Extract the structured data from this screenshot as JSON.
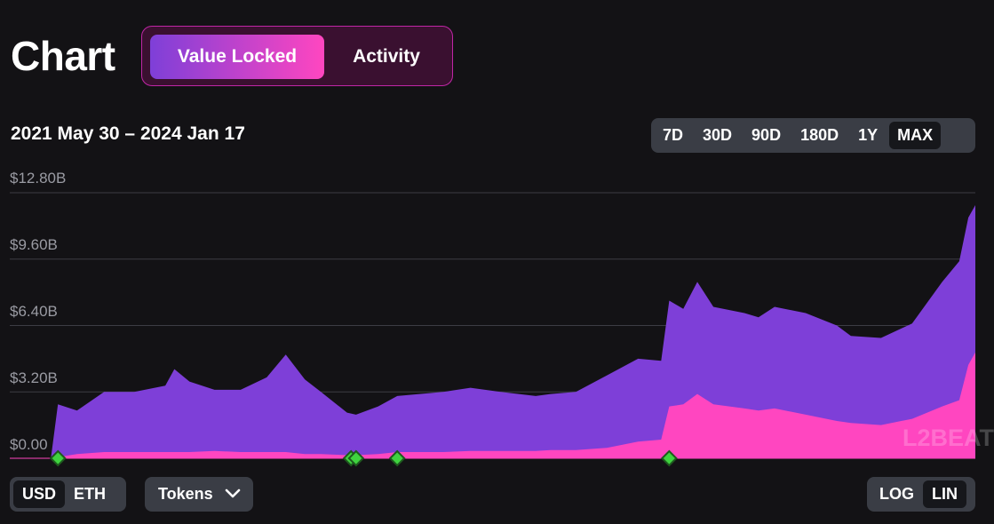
{
  "header": {
    "title": "Chart",
    "tabs": [
      {
        "label": "Value Locked",
        "active": true
      },
      {
        "label": "Activity",
        "active": false
      }
    ]
  },
  "date_range": "2021 May 30 – 2024 Jan 17",
  "periods": [
    {
      "label": "7D",
      "active": false
    },
    {
      "label": "30D",
      "active": false
    },
    {
      "label": "90D",
      "active": false
    },
    {
      "label": "180D",
      "active": false
    },
    {
      "label": "1Y",
      "active": false
    },
    {
      "label": "MAX",
      "active": true
    }
  ],
  "watermark": "L2BEAT",
  "controls": {
    "currency": [
      {
        "label": "USD",
        "active": true
      },
      {
        "label": "ETH",
        "active": false
      }
    ],
    "tokens_label": "Tokens",
    "scale": [
      {
        "label": "LOG",
        "active": false
      },
      {
        "label": "LIN",
        "active": true
      }
    ]
  },
  "colors": {
    "background": "#131215",
    "total_area": "#7e3fd8",
    "lower_area": "#ff46c0",
    "marker": "#3fd33f",
    "accent_gradient": [
      "#7e3fd8",
      "#ff46c0"
    ]
  },
  "chart_data": {
    "type": "area",
    "title": "",
    "xlabel": "",
    "ylabel": "",
    "y_tick_labels": [
      "$12.80B",
      "$9.60B",
      "$6.40B",
      "$3.20B",
      "$0.00"
    ],
    "ylim": [
      0,
      12.8
    ],
    "xlim": [
      "2021-05-30",
      "2024-01-17"
    ],
    "grid": true,
    "legend": "none",
    "x": [
      "2021-05-30",
      "2021-07-10",
      "2021-07-17",
      "2021-08-05",
      "2021-09-01",
      "2021-10-01",
      "2021-11-01",
      "2021-11-10",
      "2021-11-25",
      "2021-12-20",
      "2022-01-15",
      "2022-02-10",
      "2022-03-01",
      "2022-03-20",
      "2022-04-05",
      "2022-05-01",
      "2022-05-10",
      "2022-06-01",
      "2022-06-20",
      "2022-08-05",
      "2022-09-01",
      "2022-10-01",
      "2022-11-05",
      "2022-11-20",
      "2022-12-15",
      "2023-01-15",
      "2023-02-15",
      "2023-03-10",
      "2023-03-18",
      "2023-04-01",
      "2023-04-15",
      "2023-05-01",
      "2023-06-01",
      "2023-06-15",
      "2023-07-01",
      "2023-08-01",
      "2023-09-01",
      "2023-09-15",
      "2023-10-15",
      "2023-11-15",
      "2023-12-15",
      "2024-01-01",
      "2024-01-10",
      "2024-01-17"
    ],
    "series": [
      {
        "name": "",
        "values": [
          0,
          0,
          2.6,
          2.3,
          3.2,
          3.2,
          3.5,
          4.3,
          3.7,
          3.3,
          3.3,
          3.9,
          5.0,
          3.8,
          3.2,
          2.2,
          2.1,
          2.5,
          3.0,
          3.2,
          3.4,
          3.2,
          3.0,
          3.1,
          3.2,
          4.0,
          4.8,
          4.7,
          7.6,
          7.2,
          8.5,
          7.3,
          7.0,
          6.8,
          7.3,
          7.0,
          6.4,
          5.9,
          5.8,
          6.5,
          8.5,
          9.5,
          11.6,
          12.2
        ]
      },
      {
        "name": "",
        "values": [
          0,
          0,
          0.05,
          0.2,
          0.3,
          0.3,
          0.3,
          0.3,
          0.3,
          0.35,
          0.3,
          0.3,
          0.3,
          0.2,
          0.2,
          0.15,
          0.15,
          0.2,
          0.3,
          0.3,
          0.35,
          0.35,
          0.35,
          0.4,
          0.4,
          0.5,
          0.8,
          0.9,
          2.5,
          2.6,
          3.1,
          2.6,
          2.4,
          2.3,
          2.4,
          2.1,
          1.8,
          1.7,
          1.6,
          1.9,
          2.5,
          2.8,
          4.5,
          5.1
        ]
      }
    ],
    "markers": [
      "2021-07-17",
      "2022-05-05",
      "2022-05-10",
      "2022-06-20",
      "2023-03-18"
    ]
  }
}
